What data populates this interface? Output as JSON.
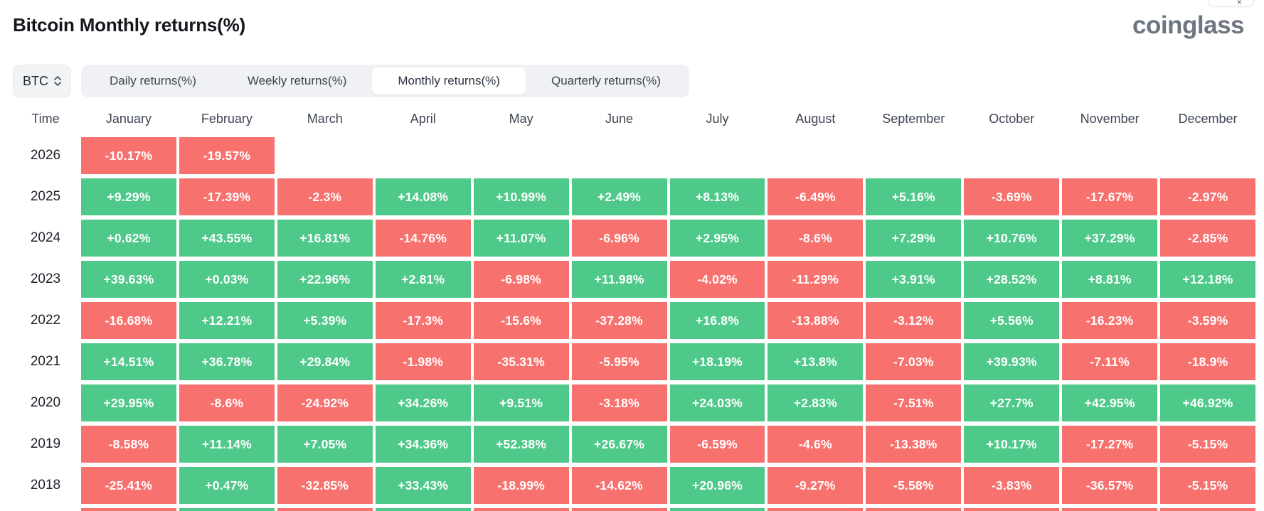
{
  "page": {
    "title": "Bitcoin Monthly returns(%)",
    "logo": "coinglass"
  },
  "controls": {
    "symbol_select": {
      "value": "BTC"
    },
    "tabs": [
      {
        "label": "Daily returns(%)",
        "active": false
      },
      {
        "label": "Weekly returns(%)",
        "active": false
      },
      {
        "label": "Monthly returns(%)",
        "active": true
      },
      {
        "label": "Quarterly returns(%)",
        "active": false
      }
    ]
  },
  "colors": {
    "positive": "#4FC98A",
    "negative": "#F7716E",
    "tab_bar_bg": "#F0F1F4",
    "active_tab_bg": "#FFFFFF"
  },
  "corner_popup": {
    "close_label": "✕"
  },
  "chart_data": {
    "type": "heatmap",
    "title": "Bitcoin Monthly returns(%)",
    "columns": [
      "Time",
      "January",
      "February",
      "March",
      "April",
      "May",
      "June",
      "July",
      "August",
      "September",
      "October",
      "November",
      "December"
    ],
    "rows": [
      {
        "year": "2026",
        "values": [
          "-10.17%",
          "-19.57%",
          null,
          null,
          null,
          null,
          null,
          null,
          null,
          null,
          null,
          null
        ]
      },
      {
        "year": "2025",
        "values": [
          "+9.29%",
          "-17.39%",
          "-2.3%",
          "+14.08%",
          "+10.99%",
          "+2.49%",
          "+8.13%",
          "-6.49%",
          "+5.16%",
          "-3.69%",
          "-17.67%",
          "-2.97%"
        ]
      },
      {
        "year": "2024",
        "values": [
          "+0.62%",
          "+43.55%",
          "+16.81%",
          "-14.76%",
          "+11.07%",
          "-6.96%",
          "+2.95%",
          "-8.6%",
          "+7.29%",
          "+10.76%",
          "+37.29%",
          "-2.85%"
        ]
      },
      {
        "year": "2023",
        "values": [
          "+39.63%",
          "+0.03%",
          "+22.96%",
          "+2.81%",
          "-6.98%",
          "+11.98%",
          "-4.02%",
          "-11.29%",
          "+3.91%",
          "+28.52%",
          "+8.81%",
          "+12.18%"
        ]
      },
      {
        "year": "2022",
        "values": [
          "-16.68%",
          "+12.21%",
          "+5.39%",
          "-17.3%",
          "-15.6%",
          "-37.28%",
          "+16.8%",
          "-13.88%",
          "-3.12%",
          "+5.56%",
          "-16.23%",
          "-3.59%"
        ]
      },
      {
        "year": "2021",
        "values": [
          "+14.51%",
          "+36.78%",
          "+29.84%",
          "-1.98%",
          "-35.31%",
          "-5.95%",
          "+18.19%",
          "+13.8%",
          "-7.03%",
          "+39.93%",
          "-7.11%",
          "-18.9%"
        ]
      },
      {
        "year": "2020",
        "values": [
          "+29.95%",
          "-8.6%",
          "-24.92%",
          "+34.26%",
          "+9.51%",
          "-3.18%",
          "+24.03%",
          "+2.83%",
          "-7.51%",
          "+27.7%",
          "+42.95%",
          "+46.92%"
        ]
      },
      {
        "year": "2019",
        "values": [
          "-8.58%",
          "+11.14%",
          "+7.05%",
          "+34.36%",
          "+52.38%",
          "+26.67%",
          "-6.59%",
          "-4.6%",
          "-13.38%",
          "+10.17%",
          "-17.27%",
          "-5.15%"
        ]
      },
      {
        "year": "2018",
        "values": [
          "-25.41%",
          "+0.47%",
          "-32.85%",
          "+33.43%",
          "-18.99%",
          "-14.62%",
          "+20.96%",
          "-9.27%",
          "-5.58%",
          "-3.83%",
          "-36.57%",
          "-5.15%"
        ]
      }
    ],
    "partial_next_row_colors": [
      "negative",
      "positive",
      "negative",
      "positive",
      "negative",
      "negative",
      "positive",
      "negative",
      "negative",
      "negative",
      "negative",
      "negative"
    ]
  }
}
